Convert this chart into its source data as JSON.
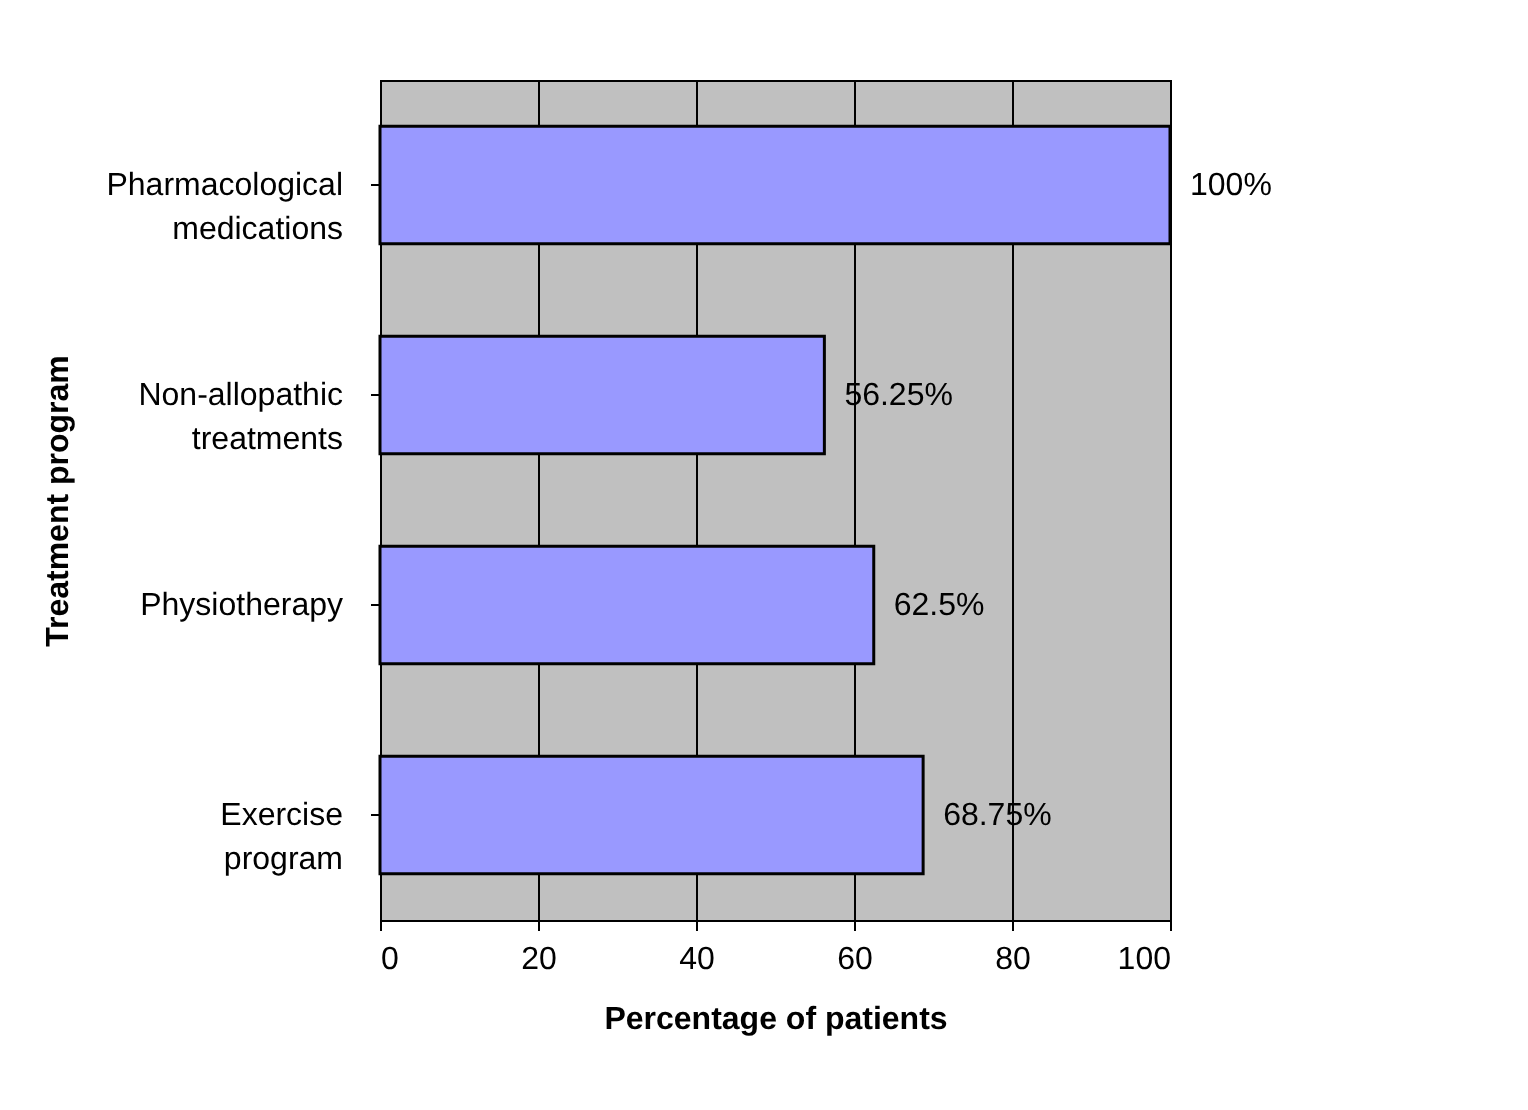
{
  "chart_data": {
    "type": "bar",
    "orientation": "horizontal",
    "xlabel": "Percentage of patients",
    "ylabel": "Treatment program",
    "categories": [
      "Pharmacological medications",
      "Non-allopathic treatments",
      "Physiotherapy",
      "Exercise program"
    ],
    "values": [
      100,
      56.25,
      62.5,
      68.75
    ],
    "value_labels": [
      "100%",
      "56.25%",
      "62.5%",
      "68.75%"
    ],
    "color": "#9999ff",
    "xlim": [
      0,
      100
    ],
    "xticks": [
      0,
      20,
      40,
      60,
      80,
      100
    ],
    "grid": "x"
  }
}
